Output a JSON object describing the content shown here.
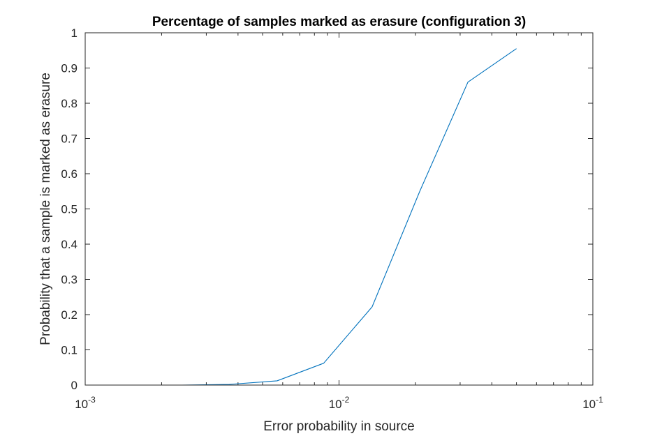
{
  "chart_data": {
    "type": "line",
    "title": "Percentage of samples marked as erasure (configuration 3)",
    "xlabel": "Error probability in source",
    "ylabel": "Probability that a sample is marked as erasure",
    "x_scale": "log",
    "xlim": [
      0.001,
      0.1
    ],
    "ylim": [
      0,
      1
    ],
    "grid": false,
    "x_ticks": [
      {
        "value": 0.001,
        "base": "10",
        "exp": "-3"
      },
      {
        "value": 0.01,
        "base": "10",
        "exp": "-2"
      },
      {
        "value": 0.1,
        "base": "10",
        "exp": "-1"
      }
    ],
    "y_ticks": [
      {
        "value": 0,
        "label": "0"
      },
      {
        "value": 0.1,
        "label": "0.1"
      },
      {
        "value": 0.2,
        "label": "0.2"
      },
      {
        "value": 0.3,
        "label": "0.3"
      },
      {
        "value": 0.4,
        "label": "0.4"
      },
      {
        "value": 0.5,
        "label": "0.5"
      },
      {
        "value": 0.6,
        "label": "0.6"
      },
      {
        "value": 0.7,
        "label": "0.7"
      },
      {
        "value": 0.8,
        "label": "0.8"
      },
      {
        "value": 0.9,
        "label": "0.9"
      },
      {
        "value": 1,
        "label": "1"
      }
    ],
    "series": [
      {
        "color": "#0072BD",
        "x": [
          0.001,
          0.0015,
          0.0024,
          0.0037,
          0.0057,
          0.0087,
          0.0135,
          0.0208,
          0.0322,
          0.05
        ],
        "y": [
          0.0,
          0.0,
          0.0,
          0.002,
          0.012,
          0.062,
          0.222,
          0.55,
          0.86,
          0.955
        ]
      }
    ]
  }
}
